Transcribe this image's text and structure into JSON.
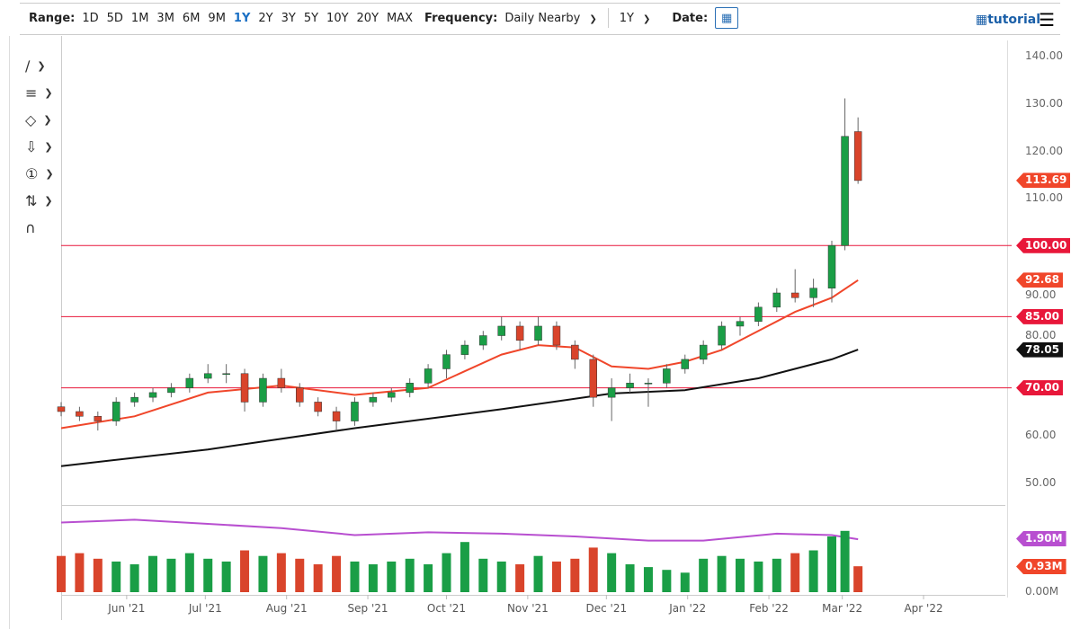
{
  "toolbar": {
    "range_label": "Range:",
    "ranges": [
      "1D",
      "5D",
      "1M",
      "3M",
      "6M",
      "9M",
      "1Y",
      "2Y",
      "3Y",
      "5Y",
      "10Y",
      "20Y",
      "MAX"
    ],
    "active_range": "1Y",
    "frequency_label": "Frequency:",
    "frequency_value": "Daily Nearby",
    "period_value": "1Y",
    "date_label": "Date:",
    "tutorial_label": "tutorial"
  },
  "left_tools": [
    "line-tool",
    "fibonacci-tool",
    "shape-tool",
    "arrow-tool",
    "annotation-tool",
    "measure-tool",
    "magnet-tool"
  ],
  "colors": {
    "up": "#1a9e46",
    "down": "#d9442b",
    "ma50": "#f0462a",
    "ma200": "#111111",
    "hline": "#e8173a",
    "vol_ma": "#b84fd0"
  },
  "chart_data": {
    "type": "candlestick",
    "ylim": [
      45,
      145
    ],
    "y_ticks": [
      "140.00",
      "130.00",
      "120.00",
      "110.00",
      "100.00",
      "90.00",
      "80.00",
      "70.00",
      "60.00",
      "50.00"
    ],
    "y_tick_values": [
      140,
      130,
      120,
      110,
      100,
      90,
      80,
      70,
      60,
      50
    ],
    "x_ticks": [
      {
        "label": "Jun '21",
        "date": "2021-06-01"
      },
      {
        "label": "Jul '21",
        "date": "2021-07-01"
      },
      {
        "label": "Aug '21",
        "date": "2021-08-01"
      },
      {
        "label": "Sep '21",
        "date": "2021-09-01"
      },
      {
        "label": "Oct '21",
        "date": "2021-10-01"
      },
      {
        "label": "Nov '21",
        "date": "2021-11-01"
      },
      {
        "label": "Dec '21",
        "date": "2021-12-01"
      },
      {
        "label": "Jan '22",
        "date": "2022-01-01"
      },
      {
        "label": "Feb '22",
        "date": "2022-02-01"
      },
      {
        "label": "Mar '22",
        "date": "2022-03-01"
      },
      {
        "label": "Apr '22",
        "date": "2022-04-01"
      }
    ],
    "start_date": "2021-05-07",
    "candles": [
      [
        "2021-05-07",
        66,
        67,
        64,
        65,
        1.3
      ],
      [
        "2021-05-14",
        65,
        66,
        63,
        64,
        1.4
      ],
      [
        "2021-05-21",
        64,
        65,
        61,
        63,
        1.2
      ],
      [
        "2021-05-28",
        63,
        68,
        62,
        67,
        1.1
      ],
      [
        "2021-06-04",
        67,
        69,
        66,
        68,
        1.0
      ],
      [
        "2021-06-11",
        68,
        70,
        67,
        69,
        1.3
      ],
      [
        "2021-06-18",
        69,
        71,
        68,
        70,
        1.2
      ],
      [
        "2021-06-25",
        70,
        73,
        69,
        72,
        1.4
      ],
      [
        "2021-07-02",
        72,
        75,
        71,
        73,
        1.2
      ],
      [
        "2021-07-09",
        73,
        75,
        71,
        73,
        1.1
      ],
      [
        "2021-07-16",
        73,
        74,
        65,
        67,
        1.5
      ],
      [
        "2021-07-23",
        67,
        73,
        66,
        72,
        1.3
      ],
      [
        "2021-07-30",
        72,
        74,
        69,
        70,
        1.4
      ],
      [
        "2021-08-06",
        70,
        71,
        66,
        67,
        1.2
      ],
      [
        "2021-08-13",
        67,
        68,
        64,
        65,
        1.0
      ],
      [
        "2021-08-20",
        65,
        66,
        61,
        63,
        1.3
      ],
      [
        "2021-08-27",
        63,
        68,
        62,
        67,
        1.1
      ],
      [
        "2021-09-03",
        67,
        69,
        66,
        68,
        1.0
      ],
      [
        "2021-09-10",
        68,
        70,
        67,
        69,
        1.1
      ],
      [
        "2021-09-17",
        69,
        72,
        68,
        71,
        1.2
      ],
      [
        "2021-09-24",
        71,
        75,
        70,
        74,
        1.0
      ],
      [
        "2021-10-01",
        74,
        78,
        72,
        77,
        1.4
      ],
      [
        "2021-10-08",
        77,
        80,
        76,
        79,
        1.8
      ],
      [
        "2021-10-15",
        79,
        82,
        78,
        81,
        1.2
      ],
      [
        "2021-10-22",
        81,
        85,
        80,
        83,
        1.1
      ],
      [
        "2021-10-29",
        83,
        84,
        78,
        80,
        1.0
      ],
      [
        "2021-11-05",
        80,
        85,
        79,
        83,
        1.3
      ],
      [
        "2021-11-12",
        83,
        84,
        78,
        79,
        1.1
      ],
      [
        "2021-11-19",
        79,
        80,
        74,
        76,
        1.2
      ],
      [
        "2021-11-26",
        76,
        77,
        66,
        68,
        1.6
      ],
      [
        "2021-12-03",
        68,
        72,
        63,
        70,
        1.4
      ],
      [
        "2021-12-10",
        70,
        73,
        69,
        71,
        1.0
      ],
      [
        "2021-12-17",
        71,
        72,
        66,
        71,
        0.9
      ],
      [
        "2021-12-24",
        71,
        75,
        70,
        74,
        0.8
      ],
      [
        "2021-12-31",
        74,
        77,
        73,
        76,
        0.7
      ],
      [
        "2022-01-07",
        76,
        80,
        75,
        79,
        1.2
      ],
      [
        "2022-01-14",
        79,
        84,
        78,
        83,
        1.3
      ],
      [
        "2022-01-21",
        83,
        85,
        81,
        84,
        1.2
      ],
      [
        "2022-01-28",
        84,
        88,
        83,
        87,
        1.1
      ],
      [
        "2022-02-04",
        87,
        91,
        86,
        90,
        1.2
      ],
      [
        "2022-02-11",
        90,
        95,
        88,
        89,
        1.4
      ],
      [
        "2022-02-18",
        89,
        93,
        87,
        91,
        1.5
      ],
      [
        "2022-02-25",
        91,
        101,
        88,
        100,
        2.0
      ],
      [
        "2022-03-02",
        100,
        131,
        99,
        123,
        2.2
      ],
      [
        "2022-03-07",
        124,
        127,
        113,
        113.69,
        0.93
      ]
    ],
    "ma50": [
      [
        "2021-05-07",
        61.5
      ],
      [
        "2021-06-04",
        64
      ],
      [
        "2021-07-02",
        69
      ],
      [
        "2021-07-30",
        70.5
      ],
      [
        "2021-08-27",
        68.5
      ],
      [
        "2021-09-24",
        70
      ],
      [
        "2021-10-22",
        77
      ],
      [
        "2021-11-05",
        79
      ],
      [
        "2021-11-19",
        78.5
      ],
      [
        "2021-12-03",
        74.5
      ],
      [
        "2021-12-17",
        74
      ],
      [
        "2021-12-31",
        75.5
      ],
      [
        "2022-01-14",
        78
      ],
      [
        "2022-01-28",
        82
      ],
      [
        "2022-02-11",
        86
      ],
      [
        "2022-02-25",
        89
      ],
      [
        "2022-03-07",
        92.68
      ]
    ],
    "ma200": [
      [
        "2021-05-07",
        53.5
      ],
      [
        "2021-07-02",
        57
      ],
      [
        "2021-08-27",
        61.5
      ],
      [
        "2021-10-22",
        65.5
      ],
      [
        "2021-12-03",
        68.8
      ],
      [
        "2021-12-31",
        69.5
      ],
      [
        "2022-01-28",
        72
      ],
      [
        "2022-02-25",
        76
      ],
      [
        "2022-03-07",
        78.05
      ]
    ],
    "vol_ma": [
      [
        "2021-05-07",
        2.5
      ],
      [
        "2021-06-04",
        2.6
      ],
      [
        "2021-07-02",
        2.45
      ],
      [
        "2021-07-30",
        2.3
      ],
      [
        "2021-08-27",
        2.05
      ],
      [
        "2021-09-24",
        2.15
      ],
      [
        "2021-10-22",
        2.1
      ],
      [
        "2021-11-19",
        2.0
      ],
      [
        "2021-12-17",
        1.85
      ],
      [
        "2022-01-07",
        1.85
      ],
      [
        "2022-02-04",
        2.1
      ],
      [
        "2022-02-25",
        2.05
      ],
      [
        "2022-03-07",
        1.9
      ]
    ],
    "hlines": [
      {
        "value": 100,
        "label": "100.00"
      },
      {
        "value": 85,
        "label": "85.00"
      },
      {
        "value": 70,
        "label": "70.00"
      }
    ],
    "last_price": "113.69",
    "ma50_label": "92.68",
    "ma200_label": "78.05",
    "volume_axis": {
      "labels": [
        "1.90M",
        "0.93M",
        "0.00M"
      ]
    }
  }
}
